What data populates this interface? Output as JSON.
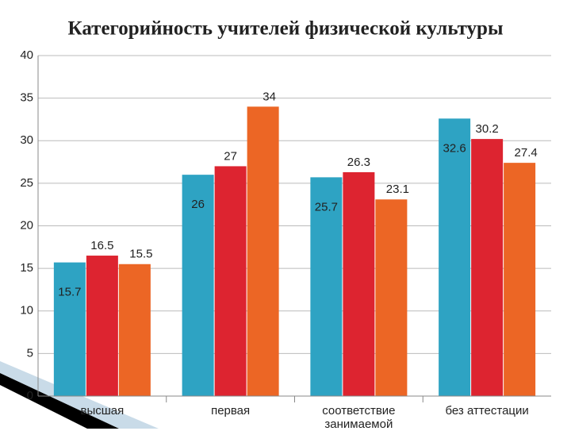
{
  "chart_data": {
    "type": "bar",
    "title": "Категорийность учителей физической культуры",
    "categories": [
      "высшая",
      "первая",
      "соответствие занимаемой",
      "без аттестации"
    ],
    "series": [
      {
        "color": "#2ea3c3",
        "values": [
          15.7,
          26,
          25.7,
          32.6
        ]
      },
      {
        "color": "#dd2430",
        "values": [
          16.5,
          27,
          26.3,
          30.2
        ]
      },
      {
        "color": "#ec6625",
        "values": [
          15.5,
          34,
          23.1,
          27.4
        ]
      }
    ],
    "ylim": [
      0,
      40
    ],
    "yticks": [
      0,
      5,
      10,
      15,
      20,
      25,
      30,
      35,
      40
    ],
    "grid": true
  }
}
